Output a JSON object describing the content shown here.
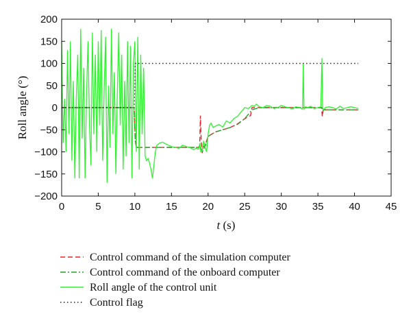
{
  "chart_data": {
    "type": "line",
    "title": "",
    "xlabel_var": "t",
    "xlabel_unit": " (s)",
    "ylabel": "Roll angle (°)",
    "xlim": [
      0,
      45
    ],
    "ylim": [
      -200,
      200
    ],
    "x_ticks": [
      0,
      5,
      10,
      15,
      20,
      25,
      30,
      35,
      40,
      45
    ],
    "y_ticks": [
      200,
      150,
      100,
      50,
      0,
      -50,
      -100,
      -150,
      -200
    ],
    "x_tick_labels": [
      "0",
      "5",
      "10",
      "15",
      "20",
      "25",
      "30",
      "35",
      "40",
      "45"
    ],
    "y_tick_labels": [
      "200",
      "150",
      "100",
      "50",
      "0",
      "−50",
      "−100",
      "−150",
      "−200"
    ],
    "grid": false,
    "legend_position": "below",
    "series": [
      {
        "name": "Control command of the simulation computer",
        "color": "#e8202a",
        "style": "dashed",
        "x": [
          0,
          9.9,
          10.05,
          10.2,
          18.6,
          18.85,
          18.95,
          19.05,
          19.2,
          19.3,
          19.6,
          20,
          21,
          22,
          23,
          24,
          25,
          25.8,
          26,
          27,
          30,
          33,
          35.5,
          35.6,
          35.7,
          35.8,
          36,
          38,
          40.5
        ],
        "y": [
          0,
          0,
          -75,
          -90,
          -90,
          -88,
          -18,
          -70,
          -103,
          -90,
          -85,
          -65,
          -55,
          -50,
          -45,
          -37,
          -25,
          -18,
          0,
          0,
          0,
          0,
          0,
          -20,
          -8,
          0,
          -5,
          -5,
          -5
        ]
      },
      {
        "name": "Control command of the onboard computer",
        "color": "#22a02a",
        "style": "dashdot",
        "x": [
          0,
          9.9,
          10.05,
          10.2,
          18.6,
          18.9,
          19.2,
          19.6,
          20,
          21,
          22,
          23,
          24,
          25,
          26,
          27,
          30,
          33,
          35.5,
          35.7,
          36,
          38,
          40.5
        ],
        "y": [
          0,
          0,
          -75,
          -90,
          -90,
          -87,
          -100,
          -88,
          -65,
          -55,
          -50,
          -45,
          -38,
          -25,
          -5,
          0,
          0,
          0,
          0,
          -5,
          -5,
          -5,
          -5
        ]
      },
      {
        "name": "Roll angle of the control unit",
        "color": "#2ef22e",
        "style": "solid",
        "x": [
          0,
          0.2,
          0.4,
          0.6,
          0.8,
          1.0,
          1.2,
          1.4,
          1.6,
          1.8,
          2.0,
          2.2,
          2.4,
          2.6,
          2.8,
          3.0,
          3.2,
          3.4,
          3.6,
          3.8,
          4.0,
          4.2,
          4.4,
          4.6,
          4.8,
          5.0,
          5.2,
          5.4,
          5.6,
          5.8,
          6.0,
          6.2,
          6.4,
          6.6,
          6.8,
          7.0,
          7.2,
          7.4,
          7.6,
          7.8,
          8.0,
          8.2,
          8.4,
          8.6,
          8.8,
          9.0,
          9.2,
          9.4,
          9.6,
          9.8,
          10.0,
          10.2,
          10.4,
          10.6,
          10.8,
          11.0,
          11.2,
          11.4,
          11.6,
          11.8,
          12.0,
          12.2,
          12.4,
          12.6,
          12.8,
          13.0,
          13.4,
          13.8,
          14.2,
          14.6,
          15.0,
          15.5,
          16.0,
          16.5,
          17.0,
          17.5,
          18.0,
          18.4,
          18.7,
          18.9,
          19.0,
          19.2,
          19.4,
          19.6,
          19.8,
          20.0,
          20.2,
          20.4,
          20.7,
          21.0,
          21.5,
          22.0,
          22.5,
          23.0,
          23.5,
          24.0,
          24.5,
          25.0,
          25.5,
          25.8,
          26.0,
          26.3,
          26.6,
          27.0,
          27.5,
          28.0,
          28.5,
          29.0,
          29.5,
          30.0,
          30.5,
          31.0,
          31.5,
          32.0,
          32.5,
          32.9,
          33.0,
          33.1,
          33.3,
          33.6,
          34.0,
          34.5,
          35.0,
          35.4,
          35.55,
          35.65,
          35.8,
          36.0,
          36.5,
          37.0,
          37.5,
          38.0,
          38.5,
          39.0,
          39.5,
          40.0,
          40.5
        ],
        "y": [
          150,
          -80,
          20,
          -100,
          130,
          -60,
          150,
          -120,
          60,
          -160,
          20,
          120,
          -160,
          178,
          -70,
          90,
          -160,
          30,
          150,
          -40,
          -130,
          170,
          -60,
          120,
          -100,
          150,
          -40,
          175,
          -120,
          40,
          160,
          -170,
          50,
          -90,
          178,
          -60,
          80,
          -150,
          30,
          170,
          -40,
          120,
          -140,
          60,
          -110,
          150,
          -80,
          140,
          -160,
          100,
          150,
          -100,
          160,
          -140,
          120,
          -60,
          90,
          -110,
          -120,
          -115,
          -125,
          -140,
          -160,
          -130,
          -100,
          -85,
          -80,
          -78,
          -82,
          -85,
          -88,
          -90,
          -92,
          -85,
          -88,
          -90,
          -95,
          -92,
          -94,
          -80,
          -100,
          -98,
          -75,
          -90,
          -100,
          -60,
          -40,
          -35,
          -45,
          -42,
          -38,
          -44,
          -30,
          -35,
          -25,
          -20,
          -10,
          0,
          -2,
          2,
          5,
          3,
          8,
          2,
          0,
          5,
          3,
          -2,
          0,
          5,
          2,
          0,
          -3,
          2,
          0,
          -3,
          100,
          -3,
          2,
          0,
          3,
          -2,
          0,
          2,
          112,
          0,
          -5,
          0,
          2,
          0,
          -3,
          3,
          -2,
          0,
          2,
          0,
          -2
        ]
      },
      {
        "name": "Control flag",
        "color": "#222222",
        "style": "dotted",
        "x": [
          0,
          9.9,
          10,
          10.05,
          40.5
        ],
        "y": [
          0,
          0,
          50,
          100,
          100
        ]
      }
    ]
  }
}
